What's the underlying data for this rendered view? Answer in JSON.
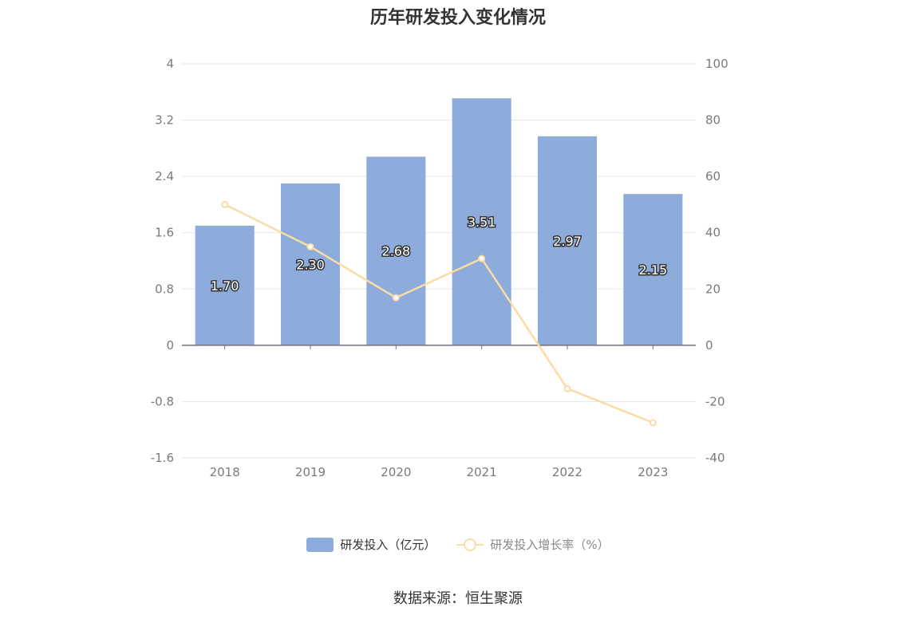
{
  "chart_data": {
    "type": "bar",
    "title": "历年研发投入变化情况",
    "categories": [
      "2018",
      "2019",
      "2020",
      "2021",
      "2022",
      "2023"
    ],
    "series": [
      {
        "name": "研发投入（亿元）",
        "type": "bar",
        "axis": "left",
        "values": [
          1.7,
          2.3,
          2.68,
          3.51,
          2.97,
          2.15
        ],
        "labels": [
          "1.70",
          "2.30",
          "2.68",
          "3.51",
          "2.97",
          "2.15"
        ],
        "color": "#8eacdb"
      },
      {
        "name": "研发投入增长率（%）",
        "type": "line",
        "axis": "right",
        "values": [
          50.0,
          35.0,
          16.9,
          30.8,
          -15.4,
          -27.5
        ],
        "color": "#fbdca4"
      }
    ],
    "left_axis": {
      "ticks": [
        "4",
        "3.2",
        "2.4",
        "1.6",
        "0.8",
        "0",
        "-0.8",
        "-1.6"
      ],
      "range": [
        -1.6,
        4
      ]
    },
    "right_axis": {
      "ticks": [
        "100",
        "80",
        "60",
        "40",
        "20",
        "0",
        "-20",
        "-40"
      ],
      "range": [
        -40,
        100
      ]
    },
    "grid": true,
    "legend_position": "bottom-center"
  },
  "source_text": "数据来源：恒生聚源"
}
